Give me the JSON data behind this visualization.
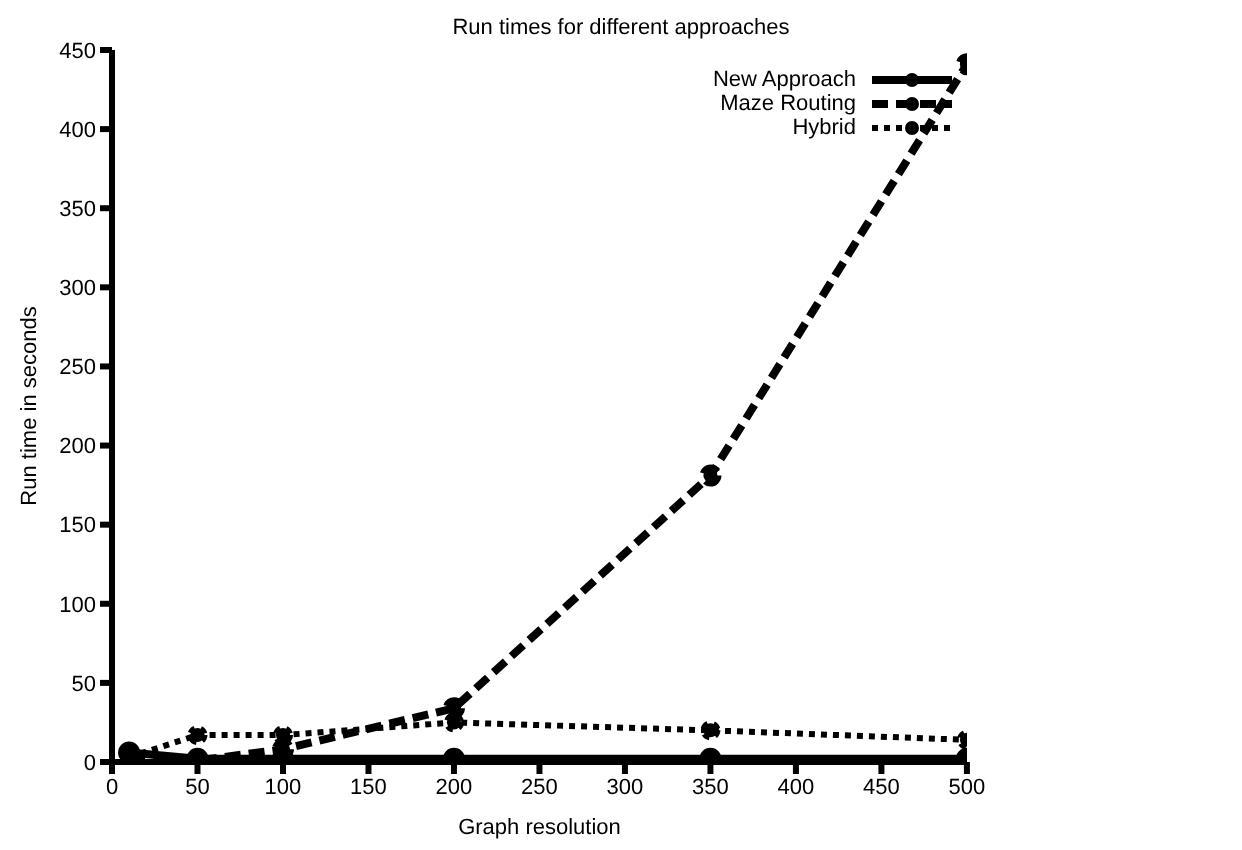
{
  "chart_data": {
    "type": "line",
    "title": "Run times for different approaches",
    "xlabel": "Graph resolution",
    "ylabel": "Run time in seconds",
    "x": [
      10,
      50,
      100,
      200,
      350,
      500
    ],
    "series": [
      {
        "name": "New Approach",
        "color": "#000000",
        "line_style": "solid",
        "values": [
          6,
          2,
          2,
          2,
          2,
          2
        ]
      },
      {
        "name": "Maze Routing",
        "color": "#000000",
        "line_style": "dashed",
        "values": [
          1,
          1,
          8,
          34,
          181,
          441
        ]
      },
      {
        "name": "Hybrid",
        "color": "#000000",
        "line_style": "dotted",
        "values": [
          3,
          17,
          17,
          25,
          20,
          14
        ]
      }
    ],
    "xlim": [
      0,
      500
    ],
    "xticks": [
      0,
      50,
      100,
      150,
      200,
      250,
      300,
      350,
      400,
      450,
      500
    ],
    "ylim": [
      0,
      450
    ],
    "yticks": [
      0,
      50,
      100,
      150,
      200,
      250,
      300,
      350,
      400,
      450
    ],
    "grid": false,
    "legend": "top right",
    "marker": "circle"
  }
}
